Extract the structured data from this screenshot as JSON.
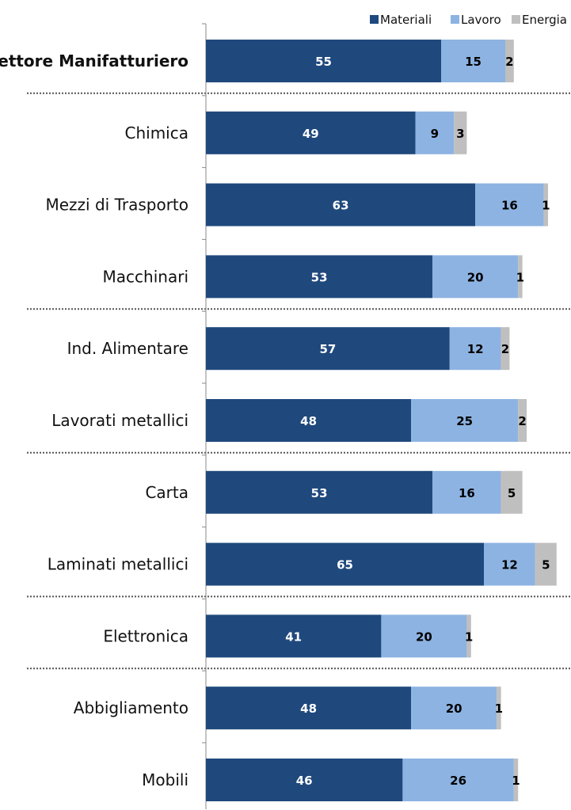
{
  "chart_data": {
    "type": "bar",
    "orientation": "horizontal",
    "stacked": true,
    "categories": [
      "Settore Manifatturiero",
      "Chimica",
      "Mezzi di Trasporto",
      "Macchinari",
      "Ind. Alimentare",
      "Lavorati metallici",
      "Carta",
      "Laminati metallici",
      "Elettronica",
      "Abbigliamento",
      "Mobili"
    ],
    "emphasized_category": "Settore Manifatturiero",
    "series": [
      {
        "name": "Materiali",
        "color": "#1f497d",
        "label_color": "#ffffff",
        "values": [
          55,
          49,
          63,
          53,
          57,
          48,
          53,
          65,
          41,
          48,
          46
        ]
      },
      {
        "name": "Lavoro",
        "color": "#8db3e2",
        "label_color": "#000000",
        "values": [
          15,
          9,
          16,
          20,
          12,
          25,
          16,
          12,
          20,
          20,
          26
        ]
      },
      {
        "name": "Energia",
        "color": "#bfbfbf",
        "label_color": "#000000",
        "values": [
          2,
          3,
          1,
          1,
          2,
          2,
          5,
          5,
          1,
          1,
          1
        ]
      }
    ],
    "legend_position": "top-right",
    "group_separators_after": [
      0,
      3,
      5,
      7,
      8
    ],
    "xlim": [
      0,
      82
    ],
    "grid": false,
    "title": "",
    "xlabel": "",
    "ylabel": ""
  }
}
